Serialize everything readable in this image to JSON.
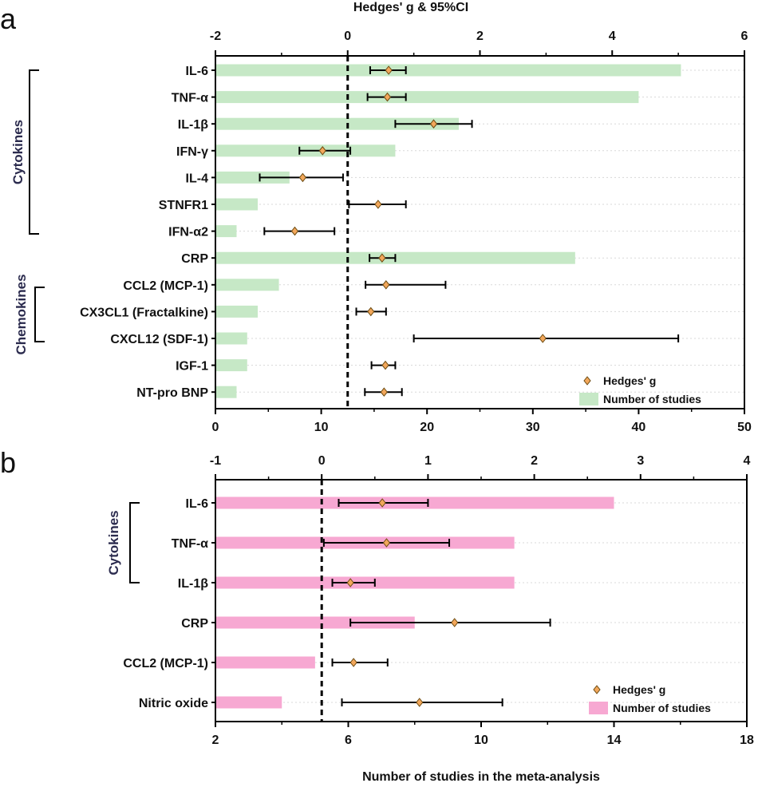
{
  "colors": {
    "bar_a": "#c6e8c6",
    "bar_b": "#f7a8d2",
    "diamond": "#f2a75b",
    "diamond_stroke": "#6b4a10",
    "axis": "#000000",
    "grid": "#d8d8d8",
    "group_label": "#2b2b4e"
  },
  "axis_titles": {
    "top": "Hedges' g  & 95%CI",
    "bottom": "Number of studies in the meta-analysis"
  },
  "chart_data": [
    {
      "panel": "a",
      "type": "bar",
      "overlay": "forest",
      "categories": [
        "IL-6",
        "TNF-α",
        "IL-1β",
        "IFN-γ",
        "IL-4",
        "STNFR1",
        "IFN-α2",
        "CRP",
        "CCL2 (MCP-1)",
        "CX3CL1 (Fractalkine)",
        "CXCL12 (SDF-1)",
        "IGF-1",
        "NT-pro BNP"
      ],
      "groups": [
        {
          "label": "Cytokines",
          "from": 0,
          "to": 6
        },
        {
          "label": "Chemokines",
          "from": 8,
          "to": 10
        }
      ],
      "studies_axis": {
        "label": "Number of studies",
        "lim": [
          0,
          50
        ],
        "ticks": [
          0,
          10,
          20,
          30,
          40,
          50
        ],
        "position": "bottom"
      },
      "g_axis": {
        "lim": [
          -2,
          6
        ],
        "ticks": [
          -2,
          0,
          2,
          4,
          6
        ],
        "position": "top"
      },
      "series": [
        {
          "name": "Number of studies",
          "kind": "bar",
          "values": [
            44,
            40,
            23,
            17,
            7,
            4,
            2,
            34,
            6,
            4,
            3,
            3,
            2
          ]
        },
        {
          "name": "Hedges' g",
          "kind": "point_ci",
          "values": [
            0.62,
            0.6,
            1.3,
            -0.38,
            -0.68,
            0.46,
            -0.8,
            0.52,
            0.58,
            0.35,
            2.95,
            0.57,
            0.55
          ],
          "ci_low": [
            0.34,
            0.3,
            0.72,
            -0.73,
            -1.33,
            0.02,
            -1.26,
            0.33,
            0.27,
            0.13,
            1.0,
            0.36,
            0.26
          ],
          "ci_high": [
            0.88,
            0.88,
            1.88,
            0.04,
            -0.07,
            0.88,
            -0.2,
            0.72,
            1.48,
            0.58,
            5.0,
            0.72,
            0.82
          ]
        }
      ],
      "legend": {
        "items": [
          "Hedges' g",
          "Number of studies"
        ],
        "position": "bottom-right"
      },
      "grid": "horizontal dotted"
    },
    {
      "panel": "b",
      "type": "bar",
      "overlay": "forest",
      "categories": [
        "IL-6",
        "TNF-α",
        "IL-1β",
        "CRP",
        "CCL2 (MCP-1)",
        "Nitric oxide"
      ],
      "groups": [
        {
          "label": "Cytokines",
          "from": 0,
          "to": 2
        }
      ],
      "studies_axis": {
        "label": "Number of studies",
        "lim": [
          2,
          18
        ],
        "ticks": [
          2,
          6,
          10,
          14,
          18
        ],
        "position": "bottom"
      },
      "g_axis": {
        "lim": [
          -1,
          4
        ],
        "ticks": [
          -1,
          0,
          1,
          2,
          3,
          4
        ],
        "position": "top"
      },
      "series": [
        {
          "name": "Number of studies",
          "kind": "bar",
          "values": [
            14,
            11,
            11,
            8,
            5,
            4
          ]
        },
        {
          "name": "Hedges' g",
          "kind": "point_ci",
          "values": [
            0.57,
            0.61,
            0.27,
            1.25,
            0.3,
            0.92
          ],
          "ci_low": [
            0.16,
            0.02,
            0.1,
            0.27,
            0.1,
            0.19
          ],
          "ci_high": [
            1.0,
            1.2,
            0.5,
            2.15,
            0.62,
            1.7
          ]
        }
      ],
      "legend": {
        "items": [
          "Hedges' g",
          "Number of studies"
        ],
        "position": "bottom-right"
      },
      "grid": "horizontal dotted"
    }
  ]
}
